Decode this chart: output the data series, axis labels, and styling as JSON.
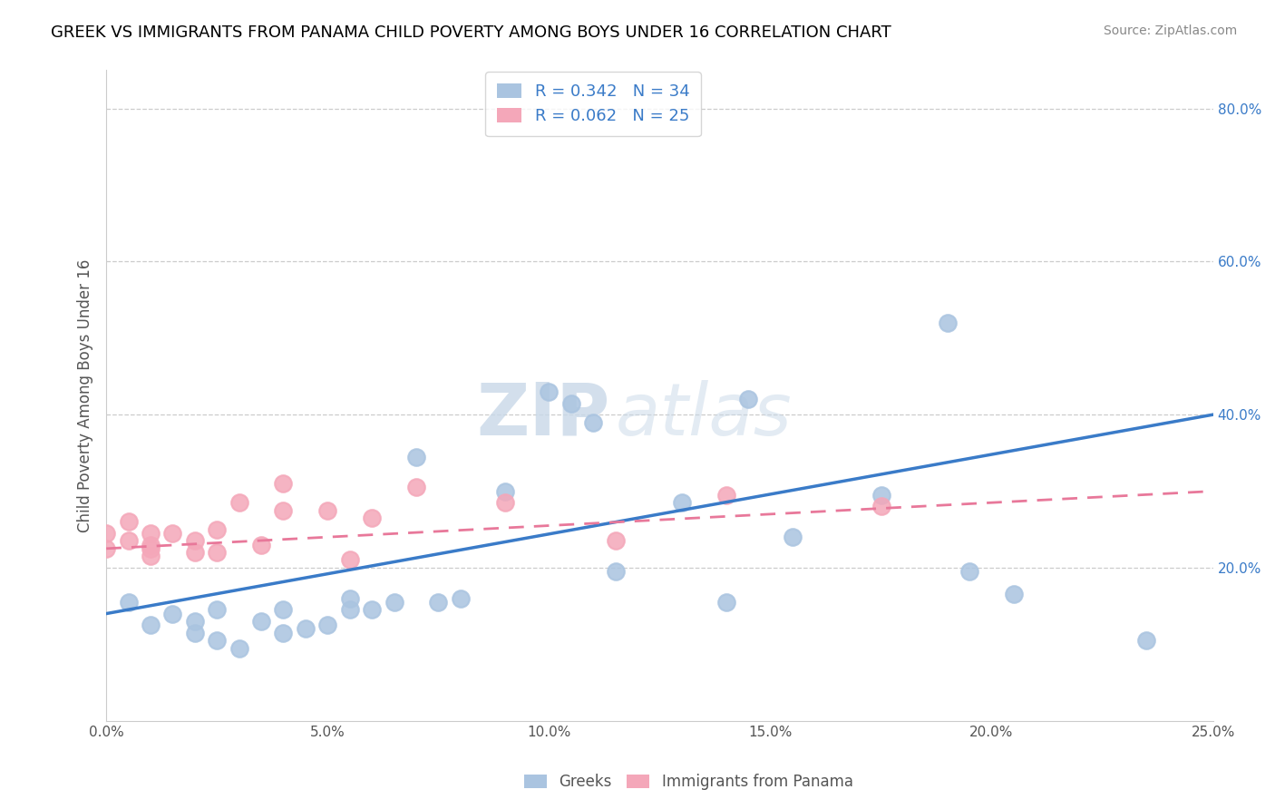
{
  "title": "GREEK VS IMMIGRANTS FROM PANAMA CHILD POVERTY AMONG BOYS UNDER 16 CORRELATION CHART",
  "source": "Source: ZipAtlas.com",
  "ylabel": "Child Poverty Among Boys Under 16",
  "xlim": [
    0.0,
    0.25
  ],
  "ylim": [
    0.0,
    0.85
  ],
  "xticks": [
    0.0,
    0.05,
    0.1,
    0.15,
    0.2,
    0.25
  ],
  "yticks_right": [
    0.2,
    0.4,
    0.6,
    0.8
  ],
  "legend1_label": "R = 0.342   N = 34",
  "legend2_label": "R = 0.062   N = 25",
  "legend_bottom1": "Greeks",
  "legend_bottom2": "Immigrants from Panama",
  "greek_color": "#aac4e0",
  "panama_color": "#f4a7b9",
  "greek_line_color": "#3a7bc8",
  "panama_line_color": "#e8789a",
  "watermark_zip": "ZIP",
  "watermark_atlas": "atlas",
  "greek_points_x": [
    0.005,
    0.01,
    0.015,
    0.02,
    0.02,
    0.025,
    0.025,
    0.03,
    0.035,
    0.04,
    0.04,
    0.045,
    0.05,
    0.055,
    0.055,
    0.06,
    0.065,
    0.07,
    0.075,
    0.08,
    0.09,
    0.1,
    0.105,
    0.11,
    0.115,
    0.13,
    0.14,
    0.145,
    0.155,
    0.175,
    0.19,
    0.195,
    0.205,
    0.235
  ],
  "greek_points_y": [
    0.155,
    0.125,
    0.14,
    0.115,
    0.13,
    0.105,
    0.145,
    0.095,
    0.13,
    0.115,
    0.145,
    0.12,
    0.125,
    0.145,
    0.16,
    0.145,
    0.155,
    0.345,
    0.155,
    0.16,
    0.3,
    0.43,
    0.415,
    0.39,
    0.195,
    0.285,
    0.155,
    0.42,
    0.24,
    0.295,
    0.52,
    0.195,
    0.165,
    0.105
  ],
  "panama_points_x": [
    0.0,
    0.0,
    0.005,
    0.005,
    0.01,
    0.01,
    0.01,
    0.01,
    0.015,
    0.02,
    0.02,
    0.025,
    0.025,
    0.03,
    0.035,
    0.04,
    0.04,
    0.05,
    0.055,
    0.06,
    0.07,
    0.09,
    0.115,
    0.14,
    0.175
  ],
  "panama_points_y": [
    0.245,
    0.225,
    0.235,
    0.26,
    0.23,
    0.245,
    0.225,
    0.215,
    0.245,
    0.22,
    0.235,
    0.22,
    0.25,
    0.285,
    0.23,
    0.275,
    0.31,
    0.275,
    0.21,
    0.265,
    0.305,
    0.285,
    0.235,
    0.295,
    0.28
  ],
  "greek_line_x0": 0.0,
  "greek_line_x1": 0.25,
  "greek_line_y0": 0.14,
  "greek_line_y1": 0.4,
  "panama_line_x0": 0.0,
  "panama_line_x1": 0.25,
  "panama_line_y0": 0.225,
  "panama_line_y1": 0.3
}
